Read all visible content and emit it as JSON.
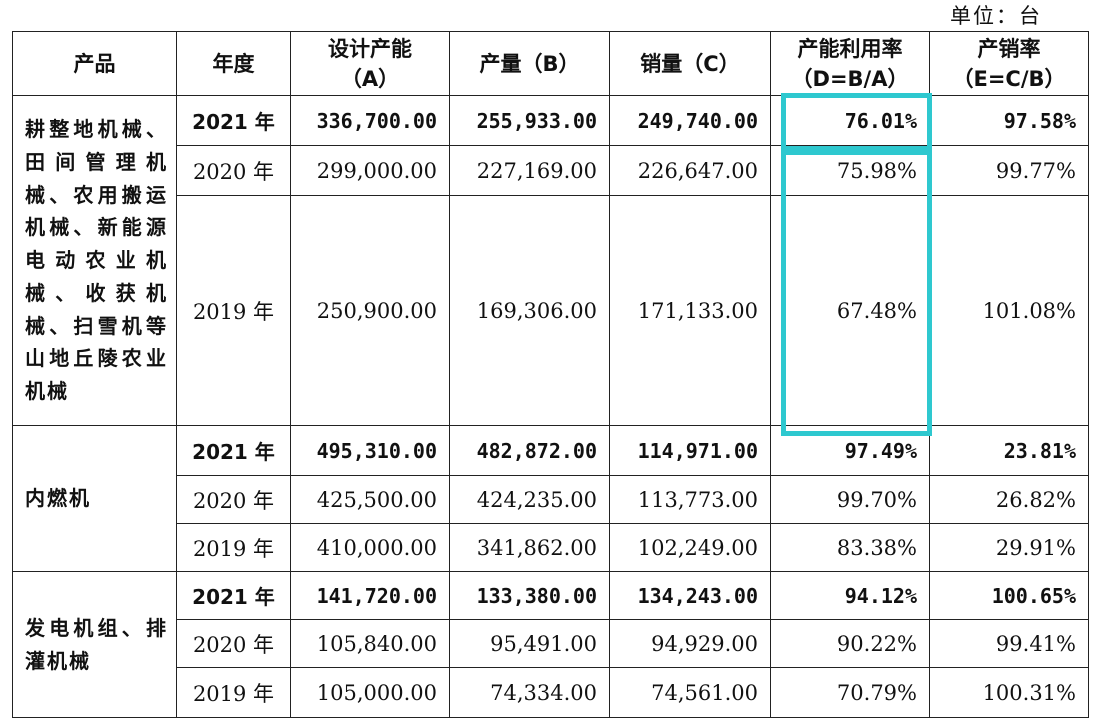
{
  "unit_label": "单位：台",
  "columns": [
    {
      "line1": "产品",
      "line2": ""
    },
    {
      "line1": "年度",
      "line2": ""
    },
    {
      "line1": "设计产能",
      "line2": "（A）"
    },
    {
      "line1": "产量（B）",
      "line2": ""
    },
    {
      "line1": "销量（C）",
      "line2": ""
    },
    {
      "line1": "产能利用率",
      "line2": "（D=B/A）"
    },
    {
      "line1": "产销率",
      "line2": "（E=C/B）"
    }
  ],
  "groups": [
    {
      "product": "耕整地机械、田间管理机械、农用搬运机械、新能源电动农业机械、收获机械、扫雪机等山地丘陵农业机械",
      "rows": [
        {
          "year": "2021 年",
          "capacity": "336,700.00",
          "output": "255,933.00",
          "sales": "249,740.00",
          "utilization": "76.01%",
          "sales_ratio": "97.58%"
        },
        {
          "year": "2020 年",
          "capacity": "299,000.00",
          "output": "227,169.00",
          "sales": "226,647.00",
          "utilization": "75.98%",
          "sales_ratio": "99.77%"
        },
        {
          "year": "2019 年",
          "capacity": "250,900.00",
          "output": "169,306.00",
          "sales": "171,133.00",
          "utilization": "67.48%",
          "sales_ratio": "101.08%"
        }
      ]
    },
    {
      "product": "内燃机",
      "rows": [
        {
          "year": "2021 年",
          "capacity": "495,310.00",
          "output": "482,872.00",
          "sales": "114,971.00",
          "utilization": "97.49%",
          "sales_ratio": "23.81%"
        },
        {
          "year": "2020 年",
          "capacity": "425,500.00",
          "output": "424,235.00",
          "sales": "113,773.00",
          "utilization": "99.70%",
          "sales_ratio": "26.82%"
        },
        {
          "year": "2019 年",
          "capacity": "410,000.00",
          "output": "341,862.00",
          "sales": "102,249.00",
          "utilization": "83.38%",
          "sales_ratio": "29.91%"
        }
      ]
    },
    {
      "product": "发电机组、排灌机械",
      "rows": [
        {
          "year": "2021 年",
          "capacity": "141,720.00",
          "output": "133,380.00",
          "sales": "134,243.00",
          "utilization": "94.12%",
          "sales_ratio": "100.65%"
        },
        {
          "year": "2020 年",
          "capacity": "105,840.00",
          "output": "95,491.00",
          "sales": "94,929.00",
          "utilization": "90.22%",
          "sales_ratio": "99.41%"
        },
        {
          "year": "2019 年",
          "capacity": "105,000.00",
          "output": "74,334.00",
          "sales": "74,561.00",
          "utilization": "70.79%",
          "sales_ratio": "100.31%"
        }
      ]
    }
  ],
  "highlight_color": "#2ec8cf"
}
